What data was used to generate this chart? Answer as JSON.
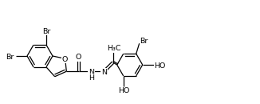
{
  "bg": "white",
  "lw": 0.9,
  "fs": 6.8,
  "bl": 16,
  "fig_w": 3.26,
  "fig_h": 1.3,
  "dpi": 100,
  "xlim": [
    0,
    326
  ],
  "ylim": [
    0,
    130
  ]
}
